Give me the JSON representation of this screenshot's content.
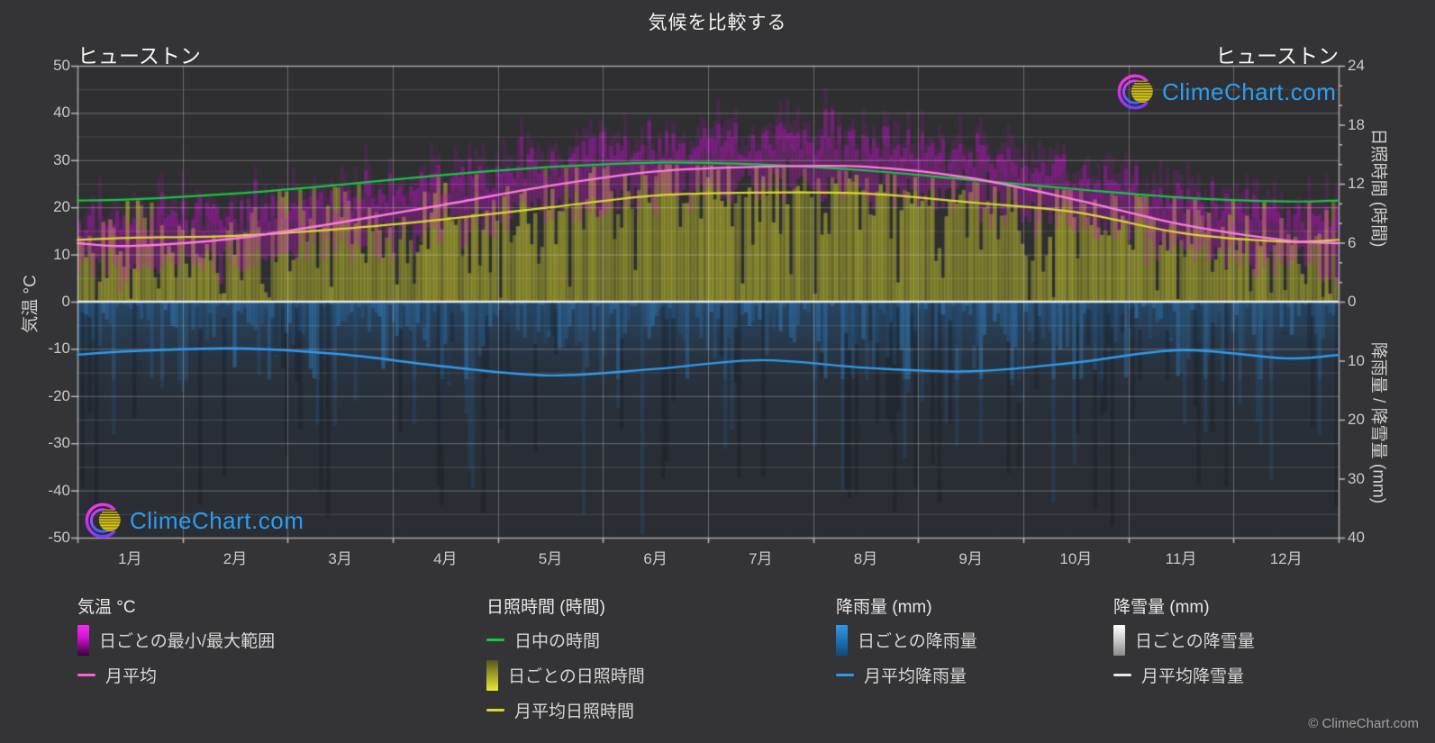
{
  "page": {
    "title": "気候を比較する",
    "location": "ヒューストン",
    "copyright": "© ClimeChart.com"
  },
  "brand": {
    "name": "ClimeChart.com"
  },
  "axes": {
    "temp": {
      "label": "気温 °C",
      "ticks": [
        50,
        40,
        30,
        20,
        10,
        0,
        -10,
        -20,
        -30,
        -40,
        -50
      ]
    },
    "sun": {
      "label": "日照時間 (時間)",
      "ticks": [
        24,
        18,
        12,
        6,
        0
      ]
    },
    "precip": {
      "label": "降雨量 / 降雪量 (mm)",
      "ticks": [
        10,
        20,
        30,
        40
      ]
    }
  },
  "colors": {
    "background": "#343436",
    "plot_background": "#2f2f31",
    "temp_range": "#d216d2",
    "temp_mean": "#ff7ce0",
    "daylight": "#12c940",
    "sun_fill": "#c5c52c",
    "sun_mean": "#d9d931",
    "rain_fill": "#2d86c8",
    "rain_mean": "#2f9bed",
    "snow_fill": "#dcdcdc",
    "snow_mean": "#e8e8e8",
    "logo_text": "#2b9df3"
  },
  "swatches": {
    "temp-range": "linear-gradient(180deg,#f02df0 0%,#d214d2 40%,#7a087a 75%,#3a033a 100%)",
    "temp-mean-line": "#ff5fd7",
    "daylight-line": "#12c940",
    "sun-range": "linear-gradient(180deg,#55551a 0%,#9a9a28 45%,#e8e838 100%)",
    "sun-mean-line": "#d9d931",
    "rain-range": "linear-gradient(180deg,#2f99e8 0%,#1d6db0 55%,#124a7a 100%)",
    "rain-mean-line": "#2f9bed",
    "snow-range": "linear-gradient(180deg,#ffffff 0%,#cfcfcf 45%,#8a8a8a 100%)",
    "snow-mean-line": "#e8e8e8"
  },
  "legend": {
    "groups": [
      {
        "title": "気温 °C",
        "items": [
          {
            "swatch": "temp-range",
            "shape": "range",
            "label": "日ごとの最小/最大範囲"
          },
          {
            "swatch": "temp-mean-line",
            "shape": "line",
            "label": "月平均"
          }
        ]
      },
      {
        "title": "日照時間 (時間)",
        "items": [
          {
            "swatch": "daylight-line",
            "shape": "line",
            "label": "日中の時間"
          },
          {
            "swatch": "sun-range",
            "shape": "range",
            "label": "日ごとの日照時間"
          },
          {
            "swatch": "sun-mean-line",
            "shape": "line",
            "label": "月平均日照時間"
          }
        ]
      },
      {
        "title": "降雨量 (mm)",
        "items": [
          {
            "swatch": "rain-range",
            "shape": "range",
            "label": "日ごとの降雨量"
          },
          {
            "swatch": "rain-mean-line",
            "shape": "line",
            "label": "月平均降雨量"
          }
        ]
      },
      {
        "title": "降雪量 (mm)",
        "items": [
          {
            "swatch": "snow-range",
            "shape": "range",
            "label": "日ごとの降雪量"
          },
          {
            "swatch": "snow-mean-line",
            "shape": "line",
            "label": "月平均降雪量"
          }
        ]
      }
    ]
  },
  "chart_data": {
    "type": "climate-composite",
    "categories": [
      "1月",
      "2月",
      "3月",
      "4月",
      "5月",
      "6月",
      "7月",
      "8月",
      "9月",
      "10月",
      "11月",
      "12月"
    ],
    "series": [
      {
        "key": "temp_mean",
        "name": "月平均気温 (°C)",
        "values": [
          11.8,
          13.4,
          16.8,
          20.6,
          24.6,
          27.6,
          28.6,
          28.6,
          26.2,
          21.6,
          16.4,
          13.0
        ]
      },
      {
        "key": "temp_min_avg",
        "name": "平均日最低気温 (°C)",
        "values": [
          7.0,
          8.8,
          12.0,
          15.6,
          19.8,
          23.2,
          24.2,
          24.0,
          21.6,
          16.6,
          11.6,
          8.0
        ]
      },
      {
        "key": "temp_max_avg",
        "name": "平均日最高気温 (°C)",
        "values": [
          17.0,
          18.8,
          22.2,
          26.0,
          29.6,
          32.8,
          34.2,
          34.6,
          31.8,
          27.0,
          21.6,
          17.8
        ]
      },
      {
        "key": "daylight_hours",
        "name": "日中の時間 (時間)",
        "values": [
          10.4,
          11.0,
          11.9,
          12.9,
          13.7,
          14.15,
          13.95,
          13.35,
          12.4,
          11.45,
          10.6,
          10.2
        ]
      },
      {
        "key": "sunshine_mean_hours",
        "name": "月平均日照時間 (時間)",
        "values": [
          6.5,
          6.7,
          7.4,
          8.4,
          9.6,
          10.8,
          11.1,
          11.0,
          10.1,
          9.1,
          7.0,
          6.1
        ]
      },
      {
        "key": "rain_mean_mm",
        "name": "月平均降雨量 (mm/日)",
        "values": [
          8.4,
          7.9,
          8.9,
          11.0,
          12.5,
          11.4,
          9.9,
          11.2,
          11.8,
          10.3,
          8.2,
          9.6
        ]
      },
      {
        "key": "snow_mean_mm",
        "name": "月平均降雪量 (mm/日)",
        "values": [
          0,
          0,
          0,
          0,
          0,
          0,
          0,
          0,
          0,
          0,
          0,
          0
        ]
      }
    ],
    "axis_ranges": {
      "temp_c": [
        -50,
        50
      ],
      "sunshine_h": [
        0,
        24
      ],
      "precip_mm": [
        0,
        40
      ]
    },
    "grid": true,
    "legend_position": "bottom"
  }
}
